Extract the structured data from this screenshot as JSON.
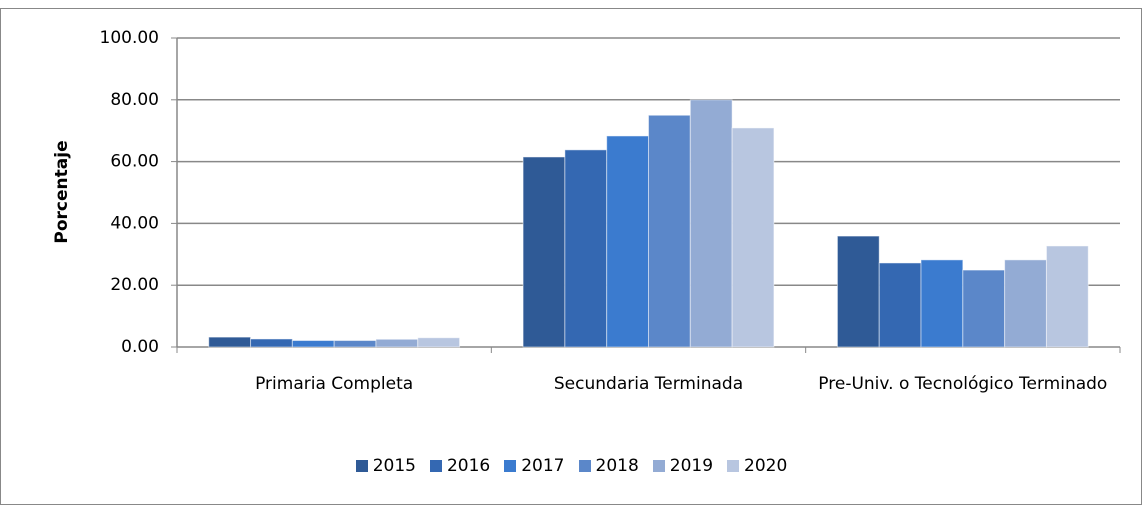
{
  "chart_data": {
    "type": "bar",
    "ylabel": "Porcentaje",
    "categories": [
      "Primaria Completa",
      "Secundaria Terminada",
      "Pre-Univ. o Tecnológico Terminado"
    ],
    "series": [
      {
        "name": "2015",
        "color": "#2f5a96",
        "values": [
          3.2,
          61.5,
          35.9
        ]
      },
      {
        "name": "2016",
        "color": "#3468b2",
        "values": [
          2.6,
          63.8,
          27.2
        ]
      },
      {
        "name": "2017",
        "color": "#3b7bcf",
        "values": [
          2.1,
          68.3,
          28.2
        ]
      },
      {
        "name": "2018",
        "color": "#5b87c9",
        "values": [
          2.1,
          75.0,
          24.9
        ]
      },
      {
        "name": "2019",
        "color": "#93abd4",
        "values": [
          2.5,
          80.0,
          28.2
        ]
      },
      {
        "name": "2020",
        "color": "#b8c6e0",
        "values": [
          3.0,
          70.9,
          32.7
        ]
      }
    ],
    "ylim": [
      0,
      100
    ],
    "yticks": [
      {
        "value": 0,
        "label": "0.00"
      },
      {
        "value": 20,
        "label": "20.00"
      },
      {
        "value": 40,
        "label": "40.00"
      },
      {
        "value": 60,
        "label": "60.00"
      },
      {
        "value": 80,
        "label": "80.00"
      },
      {
        "value": 100,
        "label": "100.00"
      }
    ],
    "grid": true,
    "legend": "bottom"
  }
}
